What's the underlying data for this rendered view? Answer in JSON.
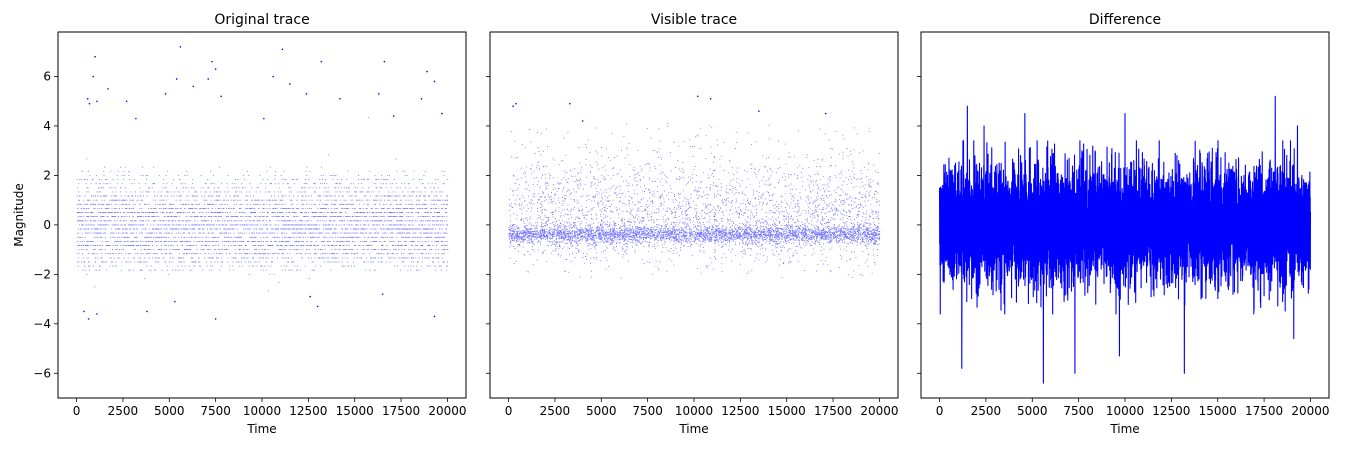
{
  "figure": {
    "ylabel": "Magnitude",
    "xlabel": "Time"
  },
  "chart_data": [
    {
      "type": "scatter",
      "title": "Original trace",
      "xlabel": "Time",
      "ylabel": "Magnitude",
      "xlim": [
        -1000,
        21000
      ],
      "ylim": [
        -7.0,
        7.8
      ],
      "x_ticks": [
        0,
        2500,
        5000,
        7500,
        10000,
        12500,
        15000,
        17500,
        20000
      ],
      "y_ticks": [
        -6,
        -4,
        -2,
        0,
        2,
        4,
        6
      ],
      "grid": false,
      "color": "#0000ff",
      "series": [
        {
          "style": "points",
          "x_range": [
            0,
            20000
          ],
          "approx_band": [
            -1.8,
            2.3
          ],
          "values": [
            {
              "x": 600,
              "y": 5.1
            },
            {
              "x": 1000,
              "y": 6.8
            },
            {
              "x": 900,
              "y": 6.0
            },
            {
              "x": 700,
              "y": 4.9
            },
            {
              "x": 1100,
              "y": 5.0
            },
            {
              "x": 1700,
              "y": 5.5
            },
            {
              "x": 2700,
              "y": 5.0
            },
            {
              "x": 3200,
              "y": 4.3
            },
            {
              "x": 4800,
              "y": 5.3
            },
            {
              "x": 5400,
              "y": 5.9
            },
            {
              "x": 5600,
              "y": 7.2
            },
            {
              "x": 6300,
              "y": 5.6
            },
            {
              "x": 7100,
              "y": 5.9
            },
            {
              "x": 7300,
              "y": 6.6
            },
            {
              "x": 7500,
              "y": 6.3
            },
            {
              "x": 7800,
              "y": 5.2
            },
            {
              "x": 10100,
              "y": 4.3
            },
            {
              "x": 10600,
              "y": 6.0
            },
            {
              "x": 11100,
              "y": 7.1
            },
            {
              "x": 11500,
              "y": 5.7
            },
            {
              "x": 12400,
              "y": 5.3
            },
            {
              "x": 13200,
              "y": 6.6
            },
            {
              "x": 14200,
              "y": 5.1
            },
            {
              "x": 16300,
              "y": 5.3
            },
            {
              "x": 16600,
              "y": 6.6
            },
            {
              "x": 17100,
              "y": 4.4
            },
            {
              "x": 18600,
              "y": 5.1
            },
            {
              "x": 18900,
              "y": 6.2
            },
            {
              "x": 19300,
              "y": 5.8
            },
            {
              "x": 19700,
              "y": 4.5
            },
            {
              "x": 400,
              "y": -3.5
            },
            {
              "x": 1100,
              "y": -3.6
            },
            {
              "x": 650,
              "y": -3.8
            },
            {
              "x": 3800,
              "y": -3.5
            },
            {
              "x": 5300,
              "y": -3.1
            },
            {
              "x": 7500,
              "y": -3.8
            },
            {
              "x": 12600,
              "y": -2.9
            },
            {
              "x": 13000,
              "y": -3.3
            },
            {
              "x": 16500,
              "y": -2.8
            },
            {
              "x": 19300,
              "y": -3.7
            }
          ]
        }
      ]
    },
    {
      "type": "scatter",
      "title": "Visible trace",
      "xlabel": "Time",
      "xlim": [
        -1000,
        21000
      ],
      "ylim": [
        -7.0,
        7.8
      ],
      "x_ticks": [
        0,
        2500,
        5000,
        7500,
        10000,
        12500,
        15000,
        17500,
        20000
      ],
      "y_ticks": [
        -6,
        -4,
        -2,
        0,
        2,
        4,
        6
      ],
      "grid": false,
      "color": "#0000ff",
      "series": [
        {
          "style": "points",
          "x_range": [
            0,
            20000
          ],
          "approx_baseline": -0.4,
          "approx_band": [
            -2.1,
            4.0
          ],
          "values": [
            {
              "x": 250,
              "y": 4.8
            },
            {
              "x": 400,
              "y": 4.9
            },
            {
              "x": 3300,
              "y": 4.9
            },
            {
              "x": 10200,
              "y": 5.2
            },
            {
              "x": 10900,
              "y": 5.1
            },
            {
              "x": 4000,
              "y": 4.2
            },
            {
              "x": 13500,
              "y": 4.6
            },
            {
              "x": 17100,
              "y": 4.5
            }
          ]
        }
      ]
    },
    {
      "type": "line",
      "title": "Difference",
      "xlabel": "Time",
      "xlim": [
        -1000,
        21000
      ],
      "ylim": [
        -7.0,
        7.8
      ],
      "x_ticks": [
        0,
        2500,
        5000,
        7500,
        10000,
        12500,
        15000,
        17500,
        20000
      ],
      "y_ticks": [
        -6,
        -4,
        -2,
        0,
        2,
        4,
        6
      ],
      "grid": false,
      "color": "#0000ff",
      "series": [
        {
          "style": "line",
          "x_range": [
            0,
            20000
          ],
          "approx_min": -6.4,
          "approx_max": 5.2,
          "values": [
            {
              "x": 1500,
              "y": 4.8
            },
            {
              "x": 2400,
              "y": 4.0
            },
            {
              "x": 4600,
              "y": 4.5
            },
            {
              "x": 10000,
              "y": 4.5
            },
            {
              "x": 18100,
              "y": 5.2
            },
            {
              "x": 19300,
              "y": 4.0
            },
            {
              "x": 5600,
              "y": -6.4
            },
            {
              "x": 7300,
              "y": -6.0
            },
            {
              "x": 13200,
              "y": -6.0
            },
            {
              "x": 1200,
              "y": -5.8
            },
            {
              "x": 9700,
              "y": -5.3
            },
            {
              "x": 19100,
              "y": -4.6
            }
          ]
        }
      ]
    }
  ]
}
